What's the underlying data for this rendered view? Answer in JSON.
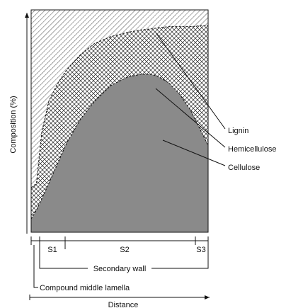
{
  "chart_data": {
    "type": "area",
    "ylabel": "Composition (%)",
    "xlabel": "Distance",
    "stacking": "stacked, bottom to top: Cellulose, Hemicellulose, Lignin",
    "layers": [
      {
        "name": "Cellulose",
        "fill": "gray",
        "color": "#8a8a8a"
      },
      {
        "name": "Hemicellulose",
        "fill": "crosshatch",
        "color": "#ffffff"
      },
      {
        "name": "Lignin",
        "fill": "diagonal-hatch",
        "color": "#ffffff"
      }
    ],
    "annotations": [
      "Lignin",
      "Hemicellulose",
      "Cellulose"
    ],
    "regions": [
      "S1",
      "S2",
      "S3"
    ],
    "brackets": [
      "Secondary wall",
      "Compound middle lamella"
    ],
    "x": [
      0,
      0.03,
      0.06,
      0.1,
      0.15,
      0.2,
      0.28,
      0.36,
      0.45,
      0.55,
      0.62,
      0.68,
      0.72,
      0.78,
      0.84,
      0.9,
      0.95,
      1.0
    ],
    "cellulose_top": [
      6,
      10,
      15,
      22,
      31,
      40,
      51,
      59,
      66,
      70,
      71,
      71,
      70,
      67,
      62,
      55,
      47,
      39
    ],
    "hemicellulose_top": [
      20,
      22,
      45,
      59,
      67,
      73,
      80,
      85,
      88,
      90,
      91,
      91.5,
      92,
      92.5,
      92.5,
      92.5,
      92.8,
      93
    ]
  }
}
